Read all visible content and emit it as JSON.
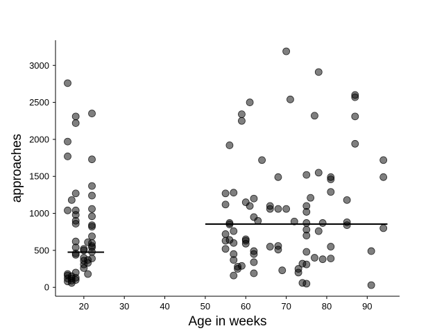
{
  "chart_data": {
    "type": "scatter",
    "xlabel": "Age in weeks",
    "ylabel": "approaches",
    "xlim": [
      13,
      98
    ],
    "ylim": [
      -120,
      3340
    ],
    "xticks": [
      20,
      30,
      40,
      50,
      60,
      70,
      80,
      90
    ],
    "yticks": [
      0,
      500,
      1000,
      1500,
      2000,
      2500,
      3000
    ],
    "grid": false,
    "point_color": "#000000",
    "point_opacity": 0.5,
    "points": [
      [
        16,
        2760
      ],
      [
        16,
        1970
      ],
      [
        16,
        1770
      ],
      [
        16,
        1040
      ],
      [
        16,
        180
      ],
      [
        16,
        160
      ],
      [
        16,
        120
      ],
      [
        16,
        80
      ],
      [
        17,
        1180
      ],
      [
        17,
        150
      ],
      [
        17,
        120
      ],
      [
        17,
        90
      ],
      [
        17,
        60
      ],
      [
        18,
        2310
      ],
      [
        18,
        2220
      ],
      [
        18,
        1270
      ],
      [
        18,
        1040
      ],
      [
        18,
        980
      ],
      [
        18,
        900
      ],
      [
        18,
        860
      ],
      [
        18,
        620
      ],
      [
        18,
        540
      ],
      [
        18,
        460
      ],
      [
        18,
        440
      ],
      [
        18,
        200
      ],
      [
        18,
        130
      ],
      [
        18,
        100
      ],
      [
        20,
        520
      ],
      [
        20,
        500
      ],
      [
        20,
        400
      ],
      [
        20,
        360
      ],
      [
        20,
        310
      ],
      [
        20,
        260
      ],
      [
        21,
        610
      ],
      [
        21,
        370
      ],
      [
        21,
        330
      ],
      [
        21,
        180
      ],
      [
        22,
        2350
      ],
      [
        22,
        1730
      ],
      [
        22,
        1370
      ],
      [
        22,
        1240
      ],
      [
        22,
        1060
      ],
      [
        22,
        960
      ],
      [
        22,
        840
      ],
      [
        22,
        820
      ],
      [
        22,
        690
      ],
      [
        22,
        600
      ],
      [
        22,
        560
      ],
      [
        22,
        540
      ],
      [
        22,
        480
      ],
      [
        22,
        390
      ],
      [
        55,
        1270
      ],
      [
        55,
        1120
      ],
      [
        55,
        720
      ],
      [
        55,
        630
      ],
      [
        55,
        520
      ],
      [
        56,
        1920
      ],
      [
        56,
        870
      ],
      [
        56,
        850
      ],
      [
        56,
        640
      ],
      [
        57,
        1280
      ],
      [
        57,
        760
      ],
      [
        57,
        600
      ],
      [
        57,
        450
      ],
      [
        57,
        370
      ],
      [
        57,
        160
      ],
      [
        58,
        280
      ],
      [
        58,
        250
      ],
      [
        59,
        2340
      ],
      [
        59,
        2250
      ],
      [
        59,
        290
      ],
      [
        60,
        1150
      ],
      [
        60,
        650
      ],
      [
        60,
        630
      ],
      [
        60,
        590
      ],
      [
        61,
        2500
      ],
      [
        61,
        1100
      ],
      [
        62,
        1200
      ],
      [
        62,
        950
      ],
      [
        62,
        490
      ],
      [
        62,
        450
      ],
      [
        62,
        340
      ],
      [
        62,
        190
      ],
      [
        63,
        900
      ],
      [
        64,
        1720
      ],
      [
        66,
        1100
      ],
      [
        66,
        1060
      ],
      [
        66,
        550
      ],
      [
        68,
        1490
      ],
      [
        68,
        1060
      ],
      [
        68,
        560
      ],
      [
        68,
        510
      ],
      [
        69,
        230
      ],
      [
        70,
        3190
      ],
      [
        70,
        1060
      ],
      [
        71,
        2540
      ],
      [
        72,
        890
      ],
      [
        73,
        250
      ],
      [
        73,
        200
      ],
      [
        74,
        320
      ],
      [
        74,
        60
      ],
      [
        75,
        1520
      ],
      [
        75,
        1100
      ],
      [
        75,
        1020
      ],
      [
        75,
        870
      ],
      [
        75,
        780
      ],
      [
        75,
        700
      ],
      [
        75,
        480
      ],
      [
        75,
        310
      ],
      [
        75,
        50
      ],
      [
        76,
        1210
      ],
      [
        77,
        2320
      ],
      [
        77,
        400
      ],
      [
        78,
        2910
      ],
      [
        78,
        1550
      ],
      [
        78,
        760
      ],
      [
        79,
        870
      ],
      [
        79,
        380
      ],
      [
        81,
        1490
      ],
      [
        81,
        1460
      ],
      [
        81,
        1290
      ],
      [
        81,
        550
      ],
      [
        81,
        390
      ],
      [
        85,
        1180
      ],
      [
        85,
        880
      ],
      [
        85,
        840
      ],
      [
        87,
        2600
      ],
      [
        87,
        2570
      ],
      [
        87,
        2310
      ],
      [
        87,
        1940
      ],
      [
        91,
        490
      ],
      [
        91,
        30
      ],
      [
        94,
        1720
      ],
      [
        94,
        1490
      ],
      [
        94,
        800
      ]
    ],
    "median_lines": [
      {
        "x_start": 16,
        "x_end": 25,
        "y": 475
      },
      {
        "x_start": 50,
        "x_end": 95,
        "y": 855
      }
    ]
  }
}
